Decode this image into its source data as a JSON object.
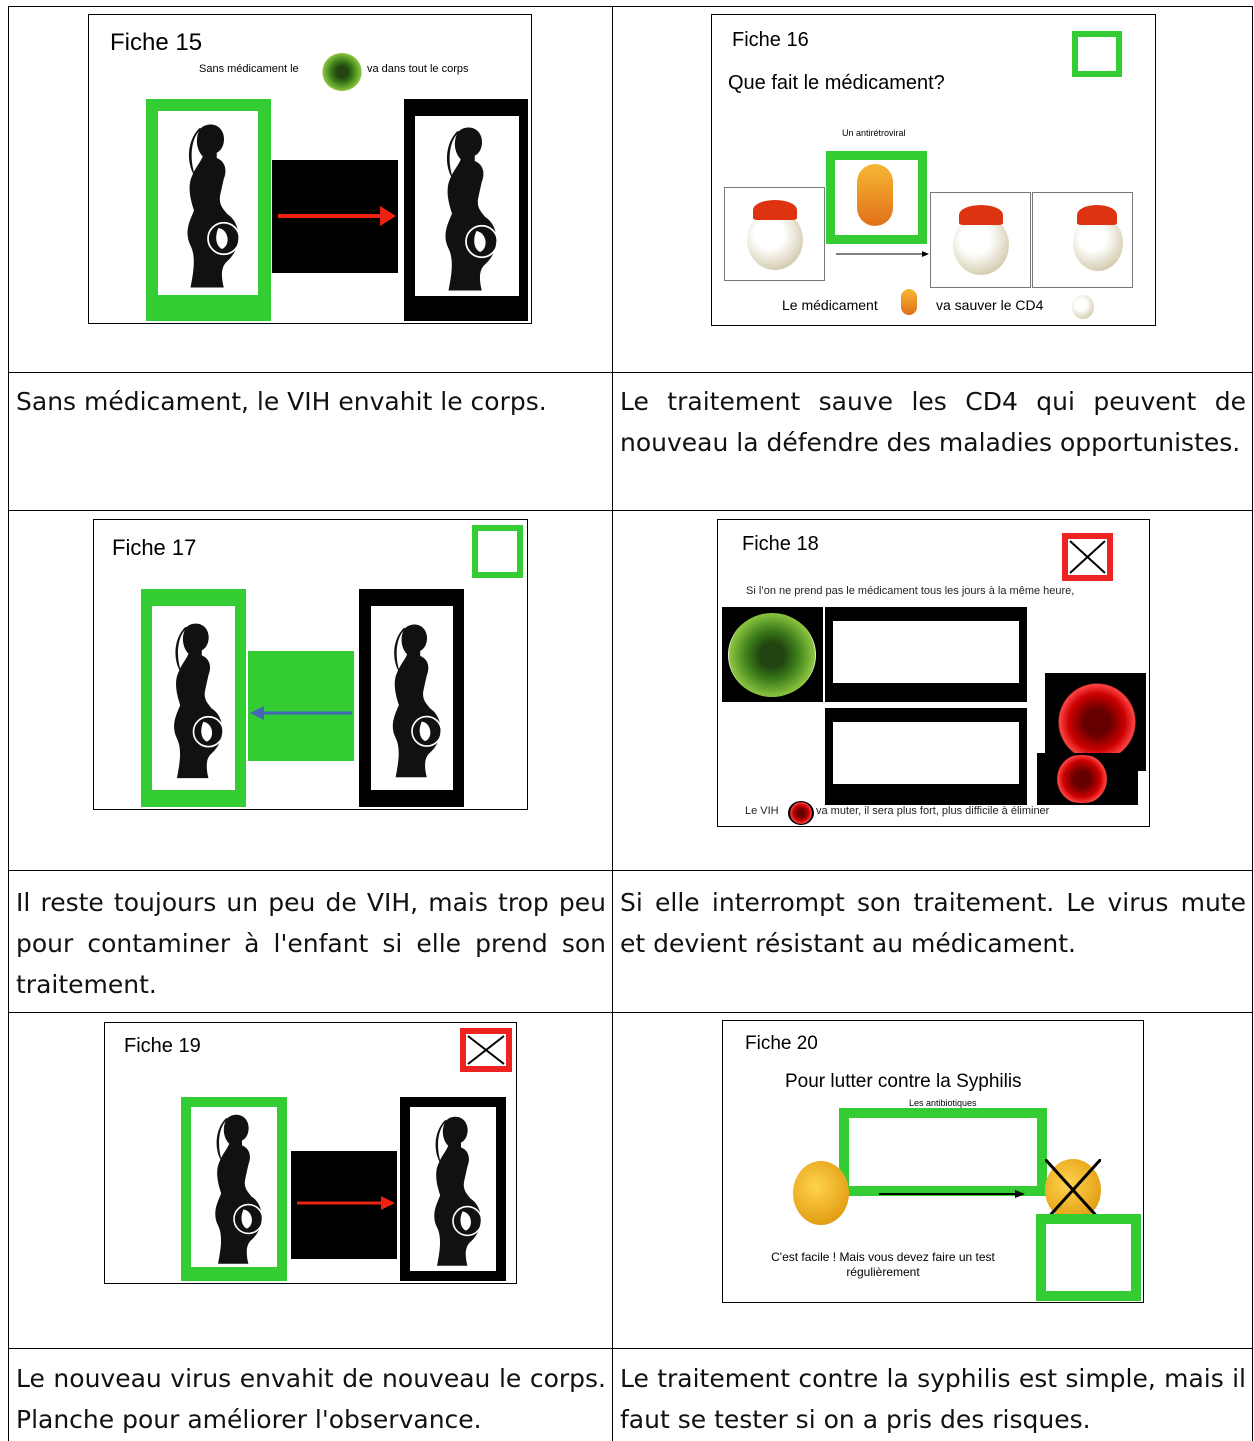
{
  "sheets": [
    {
      "title": "Fiche 15",
      "lines": [
        "Sans médicament le",
        "va dans tout le corps"
      ]
    },
    {
      "title": "Fiche 16",
      "heading": "Que fait le médicament?",
      "label": "Un antirétroviral",
      "lines": [
        "Le médicament",
        "va sauver le CD4"
      ]
    },
    {
      "title": "Fiche 17"
    },
    {
      "title": "Fiche 18",
      "heading": "Si l’on ne prend pas le médicament tous les jours à la même heure,",
      "lines": [
        "Le VIH",
        "va muter,  il sera plus fort, plus difficile à éliminer"
      ]
    },
    {
      "title": "Fiche 19"
    },
    {
      "title": "Fiche 20",
      "heading": "Pour lutter contre la Syphilis",
      "label": "Les antibiotiques",
      "lines": [
        "C'est facile ! Mais vous devez faire un test",
        "régulièrement"
      ]
    }
  ],
  "captions": [
    "Sans médicament, le VIH envahit le corps.",
    "Le traitement sauve les CD4 qui peuvent de nouveau la défendre des maladies opportunistes.",
    "Il reste toujours un peu de VIH, mais trop peu pour contaminer à l'enfant si elle prend son traitement.",
    "Si elle interrompt son traitement. Le virus mute et devient résistant au médicament.",
    "Le nouveau virus envahit de nouveau le corps. Planche pour améliorer l'observance.",
    "Le traitement contre la syphilis est simple, mais il faut se tester si on a pris des risques."
  ]
}
